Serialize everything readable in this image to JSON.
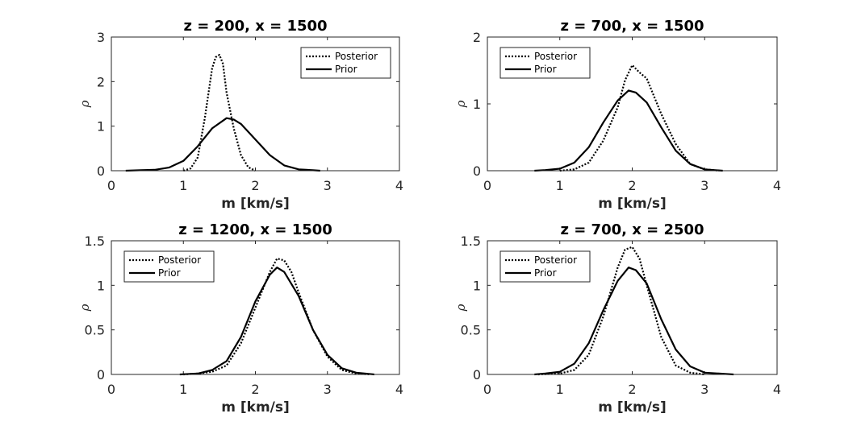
{
  "chart_data": [
    {
      "type": "line",
      "title": "z = 200, x = 1500",
      "xlabel": "m [km/s]",
      "ylabel": "ρ",
      "xlim": [
        0,
        4
      ],
      "ylim": [
        0,
        3
      ],
      "xticks": [
        "0",
        "1",
        "2",
        "3",
        "4"
      ],
      "yticks": [
        "0",
        "1",
        "2",
        "3"
      ],
      "legend": {
        "placement": "top-right",
        "entries": [
          "Posterior",
          "Prior"
        ]
      },
      "series": [
        {
          "name": "Posterior",
          "style": "dotted",
          "x": [
            1.0,
            1.1,
            1.2,
            1.3,
            1.4,
            1.45,
            1.5,
            1.55,
            1.6,
            1.7,
            1.8,
            1.9,
            2.0
          ],
          "y": [
            0.0,
            0.05,
            0.3,
            1.2,
            2.3,
            2.55,
            2.6,
            2.4,
            1.75,
            0.95,
            0.35,
            0.08,
            0.0
          ]
        },
        {
          "name": "Prior",
          "style": "solid",
          "x": [
            0.2,
            0.4,
            0.6,
            0.8,
            1.0,
            1.2,
            1.4,
            1.6,
            1.7,
            1.8,
            2.0,
            2.2,
            2.4,
            2.6,
            2.8,
            2.9
          ],
          "y": [
            0.0,
            0.01,
            0.02,
            0.07,
            0.22,
            0.55,
            0.95,
            1.18,
            1.15,
            1.05,
            0.7,
            0.35,
            0.12,
            0.03,
            0.01,
            0.0
          ]
        }
      ]
    },
    {
      "type": "line",
      "title": "z = 700, x = 1500",
      "xlabel": "m [km/s]",
      "ylabel": "ρ",
      "xlim": [
        0,
        4
      ],
      "ylim": [
        0,
        2
      ],
      "xticks": [
        "0",
        "1",
        "2",
        "3",
        "4"
      ],
      "yticks": [
        "0",
        "1",
        "2"
      ],
      "legend": {
        "placement": "top-left",
        "entries": [
          "Posterior",
          "Prior"
        ]
      },
      "series": [
        {
          "name": "Posterior",
          "style": "dotted",
          "x": [
            1.0,
            1.2,
            1.4,
            1.6,
            1.8,
            1.9,
            2.0,
            2.1,
            2.2,
            2.4,
            2.6,
            2.8,
            3.0,
            3.2
          ],
          "y": [
            0.0,
            0.02,
            0.12,
            0.45,
            0.95,
            1.35,
            1.58,
            1.47,
            1.38,
            0.85,
            0.4,
            0.1,
            0.02,
            0.0
          ]
        },
        {
          "name": "Prior",
          "style": "solid",
          "x": [
            0.65,
            0.8,
            1.0,
            1.2,
            1.4,
            1.6,
            1.8,
            1.95,
            2.05,
            2.2,
            2.4,
            2.6,
            2.8,
            3.0,
            3.25
          ],
          "y": [
            0.0,
            0.01,
            0.03,
            0.12,
            0.35,
            0.72,
            1.05,
            1.2,
            1.17,
            1.02,
            0.65,
            0.3,
            0.1,
            0.02,
            0.0
          ]
        }
      ]
    },
    {
      "type": "line",
      "title": "z = 1200, x = 1500",
      "xlabel": "m [km/s]",
      "ylabel": "ρ",
      "xlim": [
        0,
        4
      ],
      "ylim": [
        0,
        1.5
      ],
      "xticks": [
        "0",
        "1",
        "2",
        "3",
        "4"
      ],
      "yticks": [
        "0",
        "0.5",
        "1",
        "1.5"
      ],
      "legend": {
        "placement": "top-left",
        "entries": [
          "Posterior",
          "Prior"
        ]
      },
      "series": [
        {
          "name": "Posterior",
          "style": "dotted",
          "x": [
            1.0,
            1.2,
            1.4,
            1.6,
            1.8,
            2.0,
            2.2,
            2.3,
            2.4,
            2.5,
            2.6,
            2.8,
            3.0,
            3.2,
            3.4,
            3.6
          ],
          "y": [
            0.0,
            0.01,
            0.03,
            0.1,
            0.35,
            0.75,
            1.15,
            1.3,
            1.28,
            1.15,
            0.92,
            0.5,
            0.2,
            0.05,
            0.01,
            0.0
          ]
        },
        {
          "name": "Prior",
          "style": "solid",
          "x": [
            0.95,
            1.2,
            1.4,
            1.6,
            1.8,
            2.0,
            2.2,
            2.3,
            2.4,
            2.6,
            2.8,
            3.0,
            3.2,
            3.4,
            3.65
          ],
          "y": [
            0.0,
            0.01,
            0.05,
            0.15,
            0.42,
            0.82,
            1.12,
            1.2,
            1.15,
            0.88,
            0.5,
            0.22,
            0.07,
            0.02,
            0.0
          ]
        }
      ]
    },
    {
      "type": "line",
      "title": "z = 700, x = 2500",
      "xlabel": "m [km/s]",
      "ylabel": "ρ",
      "xlim": [
        0,
        4
      ],
      "ylim": [
        0,
        1.5
      ],
      "xticks": [
        "0",
        "1",
        "2",
        "3",
        "4"
      ],
      "yticks": [
        "0",
        "0.5",
        "1",
        "1.5"
      ],
      "legend": {
        "placement": "top-left",
        "entries": [
          "Posterior",
          "Prior"
        ]
      },
      "series": [
        {
          "name": "Posterior",
          "style": "dotted",
          "x": [
            0.7,
            1.0,
            1.2,
            1.4,
            1.6,
            1.8,
            1.9,
            2.0,
            2.1,
            2.2,
            2.4,
            2.6,
            2.8,
            3.0
          ],
          "y": [
            0.0,
            0.01,
            0.05,
            0.22,
            0.65,
            1.2,
            1.4,
            1.43,
            1.3,
            1.0,
            0.42,
            0.1,
            0.02,
            0.0
          ]
        },
        {
          "name": "Prior",
          "style": "solid",
          "x": [
            0.65,
            0.8,
            1.0,
            1.2,
            1.4,
            1.6,
            1.8,
            1.95,
            2.05,
            2.2,
            2.4,
            2.6,
            2.8,
            3.0,
            3.4
          ],
          "y": [
            0.0,
            0.01,
            0.03,
            0.12,
            0.35,
            0.72,
            1.05,
            1.2,
            1.17,
            1.02,
            0.62,
            0.28,
            0.09,
            0.02,
            0.0
          ]
        }
      ]
    }
  ]
}
